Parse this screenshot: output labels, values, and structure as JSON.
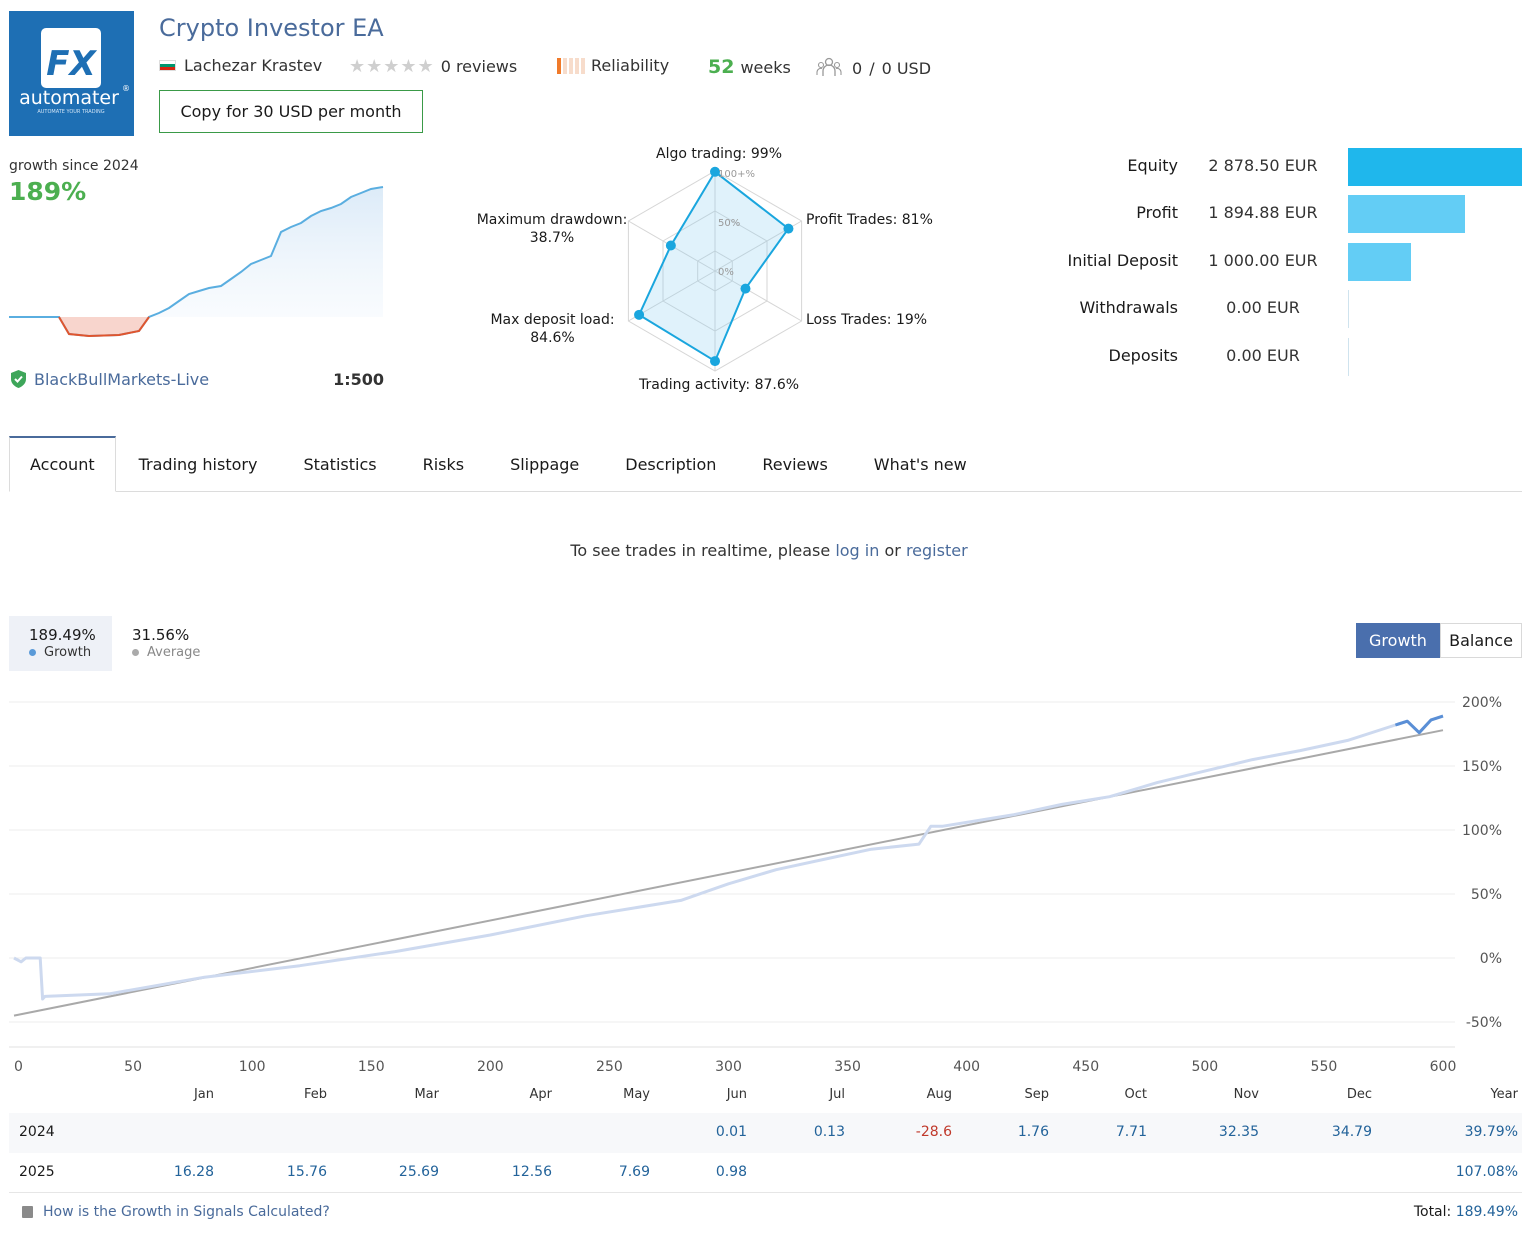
{
  "header": {
    "logo_text_top": "FX",
    "logo_text_main": "automater",
    "logo_text_sub": "AUTOMATE YOUR TRADING",
    "logo_reg": "®",
    "title": "Crypto Investor EA",
    "author": "Lachezar Krastev",
    "reviews": "0 reviews",
    "reliability_label": "Reliability",
    "weeks_value": "52",
    "weeks_label": "weeks",
    "subscribers": "0",
    "subscribers_sep": "/",
    "subscribers_funds": "0 USD",
    "copy_button": "Copy for 30 USD per month"
  },
  "summary": {
    "growth_label": "growth since 2024",
    "growth_value": "189%",
    "broker": "BlackBullMarkets-Live",
    "leverage": "1:500"
  },
  "radar": {
    "algo": "Algo trading: 99%",
    "profit_trades": "Profit Trades: 81%",
    "loss_trades": "Loss Trades: 19%",
    "trading_activity": "Trading activity: 87.6%",
    "max_deposit_load_label": "Max deposit load:",
    "max_deposit_load_value": "84.6%",
    "max_drawdown_label": "Maximum drawdown:",
    "max_drawdown_value": "38.7%",
    "ring_100": "100+%",
    "ring_50": "50%",
    "ring_0": "0%",
    "values": {
      "algo": 0.99,
      "profit": 0.81,
      "loss": 0.19,
      "activity": 0.876,
      "deposit_load": 0.846,
      "drawdown": 0.387
    }
  },
  "stats": [
    {
      "label": "Equity",
      "value": "2 878.50 EUR",
      "ratio": 1.0
    },
    {
      "label": "Profit",
      "value": "1 894.88 EUR",
      "ratio": 0.675
    },
    {
      "label": "Initial Deposit",
      "value": "1 000.00 EUR",
      "ratio": 0.36
    },
    {
      "label": "Withdrawals",
      "value": "0.00 EUR",
      "ratio": 0
    },
    {
      "label": "Deposits",
      "value": "0.00 EUR",
      "ratio": 0
    }
  ],
  "colors": {
    "accent": "#4a6fad",
    "green": "#4caf50",
    "equity_bar": "#1fb7ec",
    "bar_light": "#63cdf5",
    "negative": "#c0392b",
    "link": "#4a6b9b"
  },
  "tabs": [
    "Account",
    "Trading history",
    "Statistics",
    "Risks",
    "Slippage",
    "Description",
    "Reviews",
    "What's new"
  ],
  "realtime": {
    "prefix": "To see trades in realtime, please",
    "login": "log in",
    "or": "or",
    "register": "register"
  },
  "legend": {
    "growth_value": "189.49%",
    "growth_name": "Growth",
    "average_value": "31.56%",
    "average_name": "Average"
  },
  "toggle": {
    "growth": "Growth",
    "balance": "Balance"
  },
  "chart_data": {
    "type": "line",
    "x_range": [
      0,
      600
    ],
    "y_range": [
      -60,
      200
    ],
    "x_ticks": [
      "0",
      "50",
      "100",
      "150",
      "200",
      "250",
      "300",
      "350",
      "400",
      "450",
      "500",
      "550",
      "600"
    ],
    "y_ticks": [
      "200%",
      "150%",
      "100%",
      "50%",
      "0%",
      "-50%"
    ],
    "series": [
      {
        "name": "Growth",
        "x": [
          0,
          3,
          5,
          8,
          11,
          12,
          13,
          40,
          80,
          120,
          160,
          200,
          240,
          260,
          280,
          300,
          320,
          340,
          360,
          380,
          385,
          390,
          420,
          440,
          460,
          480,
          500,
          520,
          540,
          560,
          580,
          585,
          590,
          595,
          600
        ],
        "y": [
          0,
          -3,
          0,
          0,
          0,
          -32,
          -30,
          -28,
          -15,
          -6,
          5,
          18,
          33,
          39,
          45,
          58,
          69,
          77,
          85,
          89,
          103,
          103,
          112,
          120,
          126,
          137,
          146,
          155,
          162,
          170,
          182,
          185,
          176,
          186,
          189
        ]
      },
      {
        "name": "Average",
        "x": [
          0,
          600
        ],
        "y": [
          -45,
          178
        ]
      }
    ]
  },
  "months": [
    "Jan",
    "Feb",
    "Mar",
    "Apr",
    "May",
    "Jun",
    "Jul",
    "Aug",
    "Sep",
    "Oct",
    "Nov",
    "Dec",
    "Year"
  ],
  "years": [
    {
      "year": "2024",
      "values": [
        "",
        "",
        "",
        "",
        "",
        "0.01",
        "0.13",
        "-28.6",
        "1.76",
        "7.71",
        "32.35",
        "34.79"
      ],
      "total": "39.79%"
    },
    {
      "year": "2025",
      "values": [
        "16.28",
        "15.76",
        "25.69",
        "12.56",
        "7.69",
        "0.98",
        "",
        "",
        "",
        "",
        "",
        ""
      ],
      "total": "107.08%"
    }
  ],
  "footer": {
    "help_link": "How is the Growth in Signals Calculated?",
    "total_label": "Total:",
    "total_value": "189.49%"
  }
}
